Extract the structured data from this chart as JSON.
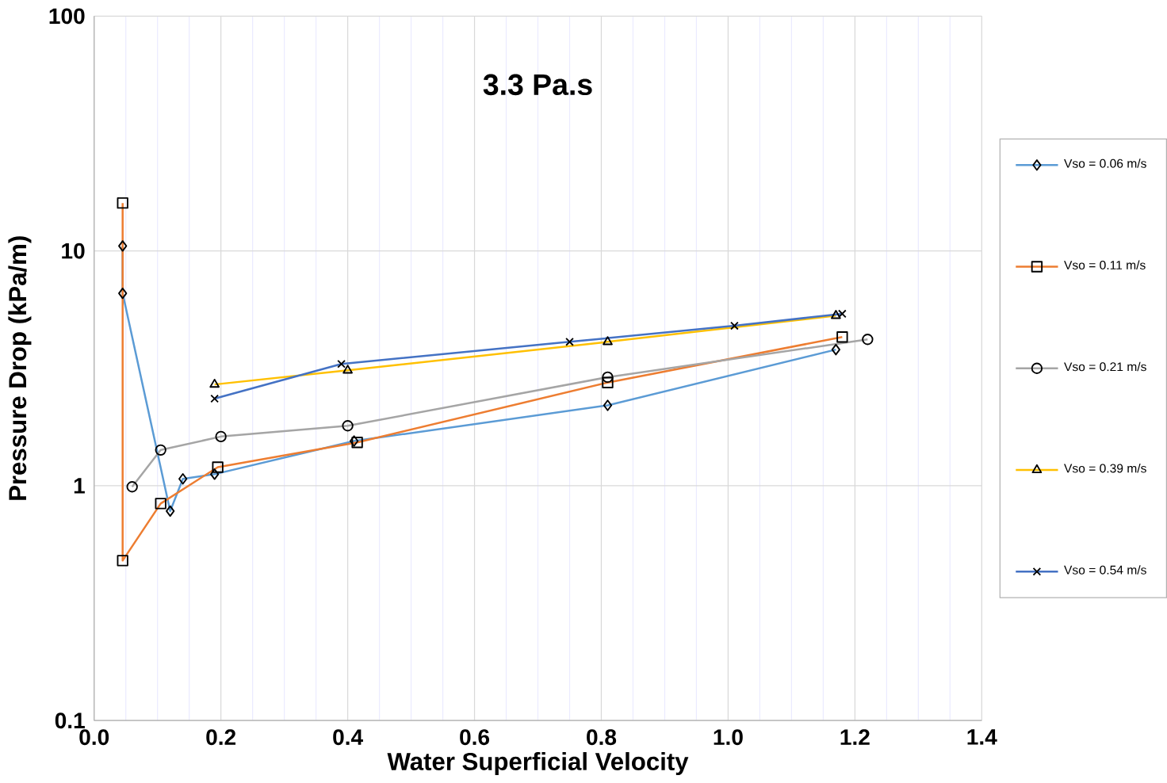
{
  "chart_data": {
    "type": "line",
    "title": "3.3 Pa.s",
    "xlabel": "Water Superficial Velocity",
    "ylabel": "Pressure Drop (kPa/m)",
    "log": "y",
    "grid": true,
    "legend": "right",
    "xlim": [
      0,
      1.4
    ],
    "xticks": [
      {
        "value": 0,
        "label": "0.0"
      },
      0.2,
      0.4,
      0.6,
      0.8,
      {
        "value": 1,
        "label": "1.0"
      },
      1.2,
      1.4
    ],
    "ylim": [
      0.1,
      100
    ],
    "yticks": [
      0.1,
      1,
      10,
      100
    ],
    "series": [
      {
        "name": "Vso = 0.06 m/s",
        "color": "#5b9bd5",
        "marker": "diamond",
        "x": [
          0.045,
          0.045,
          0.12,
          0.14,
          0.19,
          0.41,
          0.81,
          1.17
        ],
        "values": [
          10.5,
          6.6,
          0.78,
          1.07,
          1.12,
          1.55,
          2.2,
          3.8
        ]
      },
      {
        "name": "Vso = 0.11 m/s",
        "color": "#ed7d31",
        "marker": "square",
        "x": [
          0.045,
          0.045,
          0.105,
          0.195,
          0.415,
          0.81,
          1.18
        ],
        "values": [
          16,
          0.48,
          0.84,
          1.2,
          1.53,
          2.75,
          4.3
        ]
      },
      {
        "name": "Vso = 0.21 m/s",
        "color": "#a5a5a5",
        "marker": "circle",
        "x": [
          0.06,
          0.105,
          0.2,
          0.4,
          0.81,
          1.22
        ],
        "values": [
          0.99,
          1.42,
          1.62,
          1.8,
          2.9,
          4.2
        ]
      },
      {
        "name": "Vso = 0.39 m/s",
        "color": "#ffc000",
        "marker": "triangle",
        "x": [
          0.19,
          0.4,
          0.81,
          1.17
        ],
        "values": [
          2.7,
          3.1,
          4.1,
          5.3
        ]
      },
      {
        "name": "Vso = 0.54 m/s",
        "color": "#4472c4",
        "marker": "cross",
        "x": [
          0.19,
          0.39,
          0.75,
          1.01,
          1.18
        ],
        "values": [
          2.35,
          3.3,
          4.1,
          4.8,
          5.4
        ]
      }
    ]
  }
}
